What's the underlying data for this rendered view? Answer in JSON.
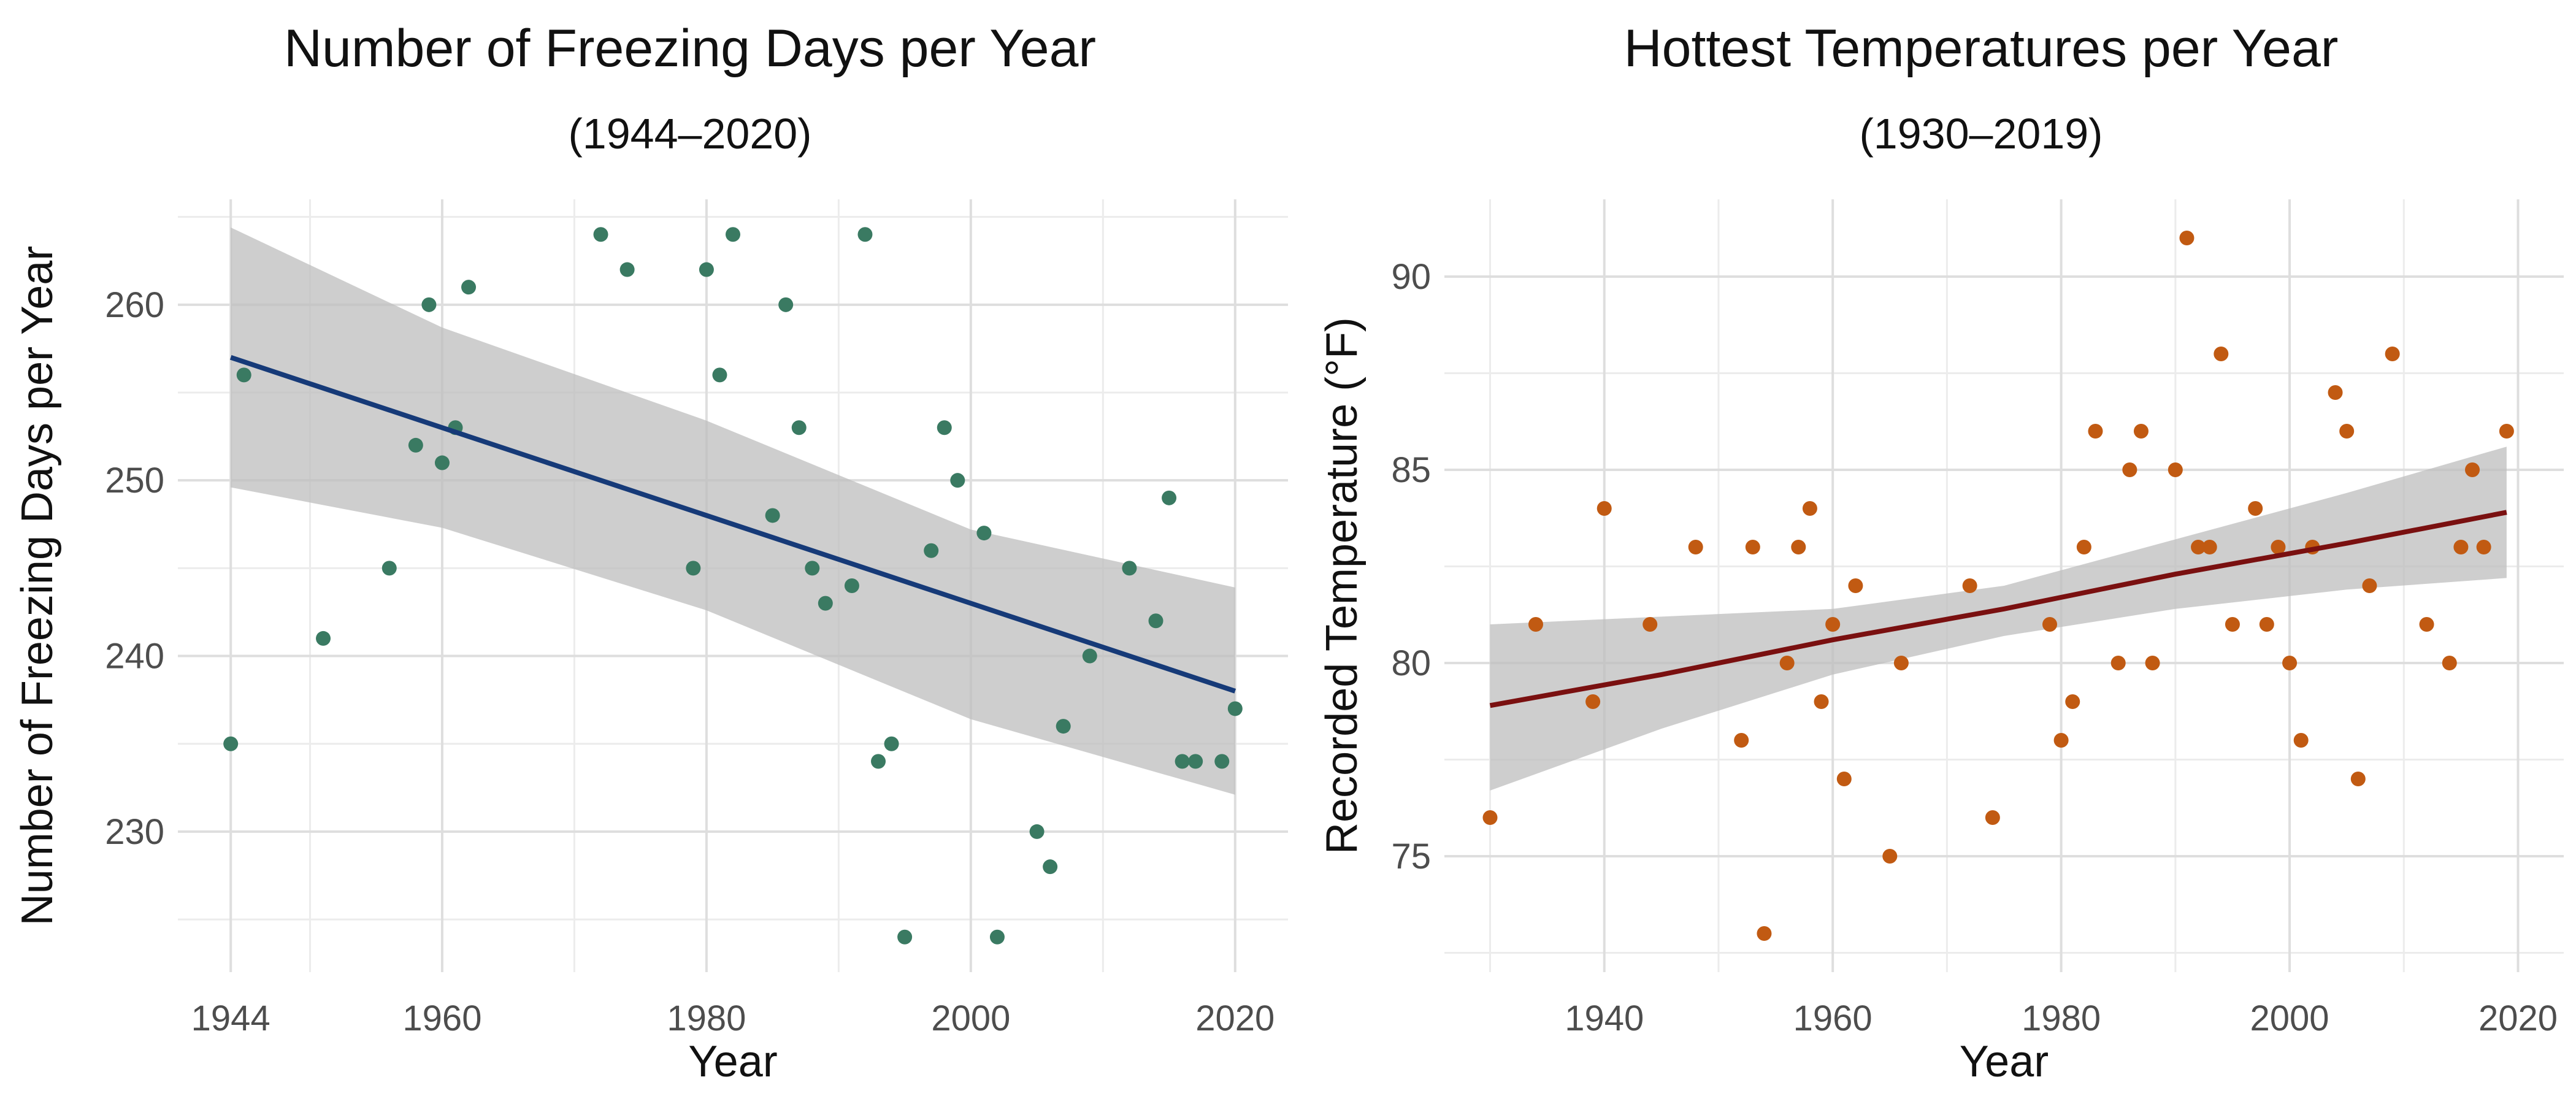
{
  "chart_data": [
    {
      "type": "scatter",
      "title": "Number of Freezing Days per Year",
      "subtitle": "(1944–2020)",
      "xlabel": "Year",
      "ylabel": "Number of Freezing Days per Year",
      "xlim": [
        1940,
        2024
      ],
      "ylim": [
        222,
        266
      ],
      "xticks": [
        1944,
        1960,
        1980,
        2000,
        2020
      ],
      "xticks_minor": [
        1950,
        1970,
        1990,
        2010
      ],
      "yticks": [
        230,
        240,
        250,
        260
      ],
      "yticks_minor": [
        225,
        235,
        245,
        255,
        265
      ],
      "grid": true,
      "legend": "none",
      "point_color": "#3a7a62",
      "line_color": "#163a78",
      "band_color": "#bdbdbd",
      "points": [
        [
          1944,
          235
        ],
        [
          1945,
          256
        ],
        [
          1951,
          241
        ],
        [
          1956,
          245
        ],
        [
          1958,
          252
        ],
        [
          1959,
          260
        ],
        [
          1960,
          251
        ],
        [
          1961,
          253
        ],
        [
          1962,
          261
        ],
        [
          1972,
          264
        ],
        [
          1974,
          262
        ],
        [
          1979,
          245
        ],
        [
          1980,
          262
        ],
        [
          1981,
          256
        ],
        [
          1982,
          264
        ],
        [
          1985,
          248
        ],
        [
          1986,
          260
        ],
        [
          1987,
          253
        ],
        [
          1988,
          245
        ],
        [
          1989,
          243
        ],
        [
          1991,
          244
        ],
        [
          1992,
          264
        ],
        [
          1993,
          234
        ],
        [
          1994,
          235
        ],
        [
          1995,
          224
        ],
        [
          1997,
          246
        ],
        [
          1998,
          253
        ],
        [
          1999,
          250
        ],
        [
          2001,
          247
        ],
        [
          2002,
          224
        ],
        [
          2005,
          230
        ],
        [
          2006,
          228
        ],
        [
          2007,
          236
        ],
        [
          2009,
          240
        ],
        [
          2012,
          245
        ],
        [
          2014,
          242
        ],
        [
          2015,
          249
        ],
        [
          2016,
          234
        ],
        [
          2017,
          234
        ],
        [
          2019,
          234
        ],
        [
          2020,
          237
        ]
      ],
      "trend": {
        "x": [
          1944,
          1960,
          1980,
          2000,
          2020
        ],
        "fit": [
          257,
          253,
          248,
          243,
          238
        ],
        "lower": [
          249.6,
          247.3,
          242.6,
          236.4,
          232.1
        ],
        "upper": [
          264.4,
          258.7,
          253.4,
          247.2,
          243.9
        ]
      }
    },
    {
      "type": "scatter",
      "title": "Hottest Temperatures per Year",
      "subtitle": "(1930–2019)",
      "xlabel": "Year",
      "ylabel": "Recorded Temperature (°F)",
      "xlim": [
        1926,
        2024
      ],
      "ylim": [
        72,
        92
      ],
      "xticks": [
        1940,
        1960,
        1980,
        2000,
        2020
      ],
      "xticks_minor": [
        1930,
        1950,
        1970,
        1990,
        2010
      ],
      "yticks": [
        75,
        80,
        85,
        90
      ],
      "yticks_minor": [
        72.5,
        77.5,
        82.5,
        87.5
      ],
      "grid": true,
      "legend": "none",
      "point_color": "#c15a12",
      "line_color": "#7a1010",
      "band_color": "#bdbdbd",
      "points": [
        [
          1930,
          76
        ],
        [
          1934,
          81
        ],
        [
          1939,
          79
        ],
        [
          1940,
          84
        ],
        [
          1944,
          81
        ],
        [
          1948,
          83
        ],
        [
          1952,
          78
        ],
        [
          1953,
          83
        ],
        [
          1954,
          73
        ],
        [
          1956,
          80
        ],
        [
          1957,
          83
        ],
        [
          1958,
          84
        ],
        [
          1959,
          79
        ],
        [
          1960,
          81
        ],
        [
          1961,
          77
        ],
        [
          1962,
          82
        ],
        [
          1965,
          75
        ],
        [
          1966,
          80
        ],
        [
          1972,
          82
        ],
        [
          1974,
          76
        ],
        [
          1979,
          81
        ],
        [
          1980,
          78
        ],
        [
          1981,
          79
        ],
        [
          1982,
          83
        ],
        [
          1983,
          86
        ],
        [
          1985,
          80
        ],
        [
          1986,
          85
        ],
        [
          1987,
          86
        ],
        [
          1988,
          80
        ],
        [
          1990,
          85
        ],
        [
          1991,
          91
        ],
        [
          1992,
          83
        ],
        [
          1993,
          83
        ],
        [
          1994,
          88
        ],
        [
          1995,
          81
        ],
        [
          1997,
          84
        ],
        [
          1998,
          81
        ],
        [
          1999,
          83
        ],
        [
          2000,
          80
        ],
        [
          2001,
          78
        ],
        [
          2002,
          83
        ],
        [
          2004,
          87
        ],
        [
          2005,
          86
        ],
        [
          2006,
          77
        ],
        [
          2007,
          82
        ],
        [
          2009,
          88
        ],
        [
          2012,
          81
        ],
        [
          2014,
          80
        ],
        [
          2015,
          83
        ],
        [
          2016,
          85
        ],
        [
          2017,
          83
        ],
        [
          2019,
          86
        ]
      ],
      "trend": {
        "x": [
          1930,
          1945,
          1960,
          1975,
          1990,
          2005,
          2019
        ],
        "fit": [
          78.9,
          79.7,
          80.6,
          81.4,
          82.3,
          83.1,
          83.9
        ],
        "lower": [
          76.7,
          78.3,
          79.7,
          80.7,
          81.4,
          81.9,
          82.2
        ],
        "upper": [
          81.0,
          81.2,
          81.4,
          82.0,
          83.2,
          84.4,
          85.6
        ]
      }
    }
  ]
}
